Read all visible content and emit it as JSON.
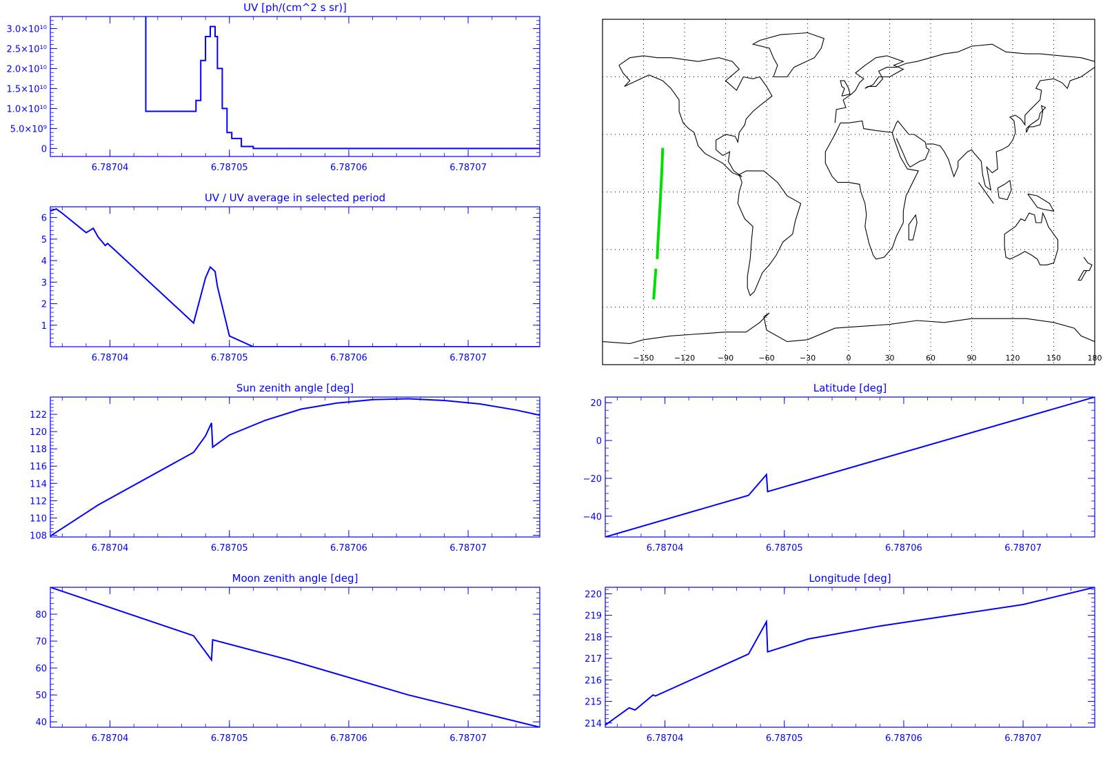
{
  "colors": {
    "axis": "#0000ff",
    "line": "#0000ff",
    "track": "#00e000",
    "map_frame": "#000000",
    "coast": "#000000",
    "grid": "#000000"
  },
  "chart_data": [
    {
      "id": "uv",
      "type": "line",
      "title": "UV [ph/(cm^2 s sr)]",
      "xlim": [
        6.787035,
        6.787076
      ],
      "ylim": [
        -2000000000.0,
        33000000000.0
      ],
      "x_ticks": [
        6.78704,
        6.78705,
        6.78706,
        6.78707
      ],
      "x_tick_labels": [
        "6.78704",
        "6.78705",
        "6.78706",
        "6.78707"
      ],
      "y_ticks": [
        0,
        5000000000.0,
        10000000000.0,
        15000000000.0,
        20000000000.0,
        25000000000.0,
        30000000000.0
      ],
      "y_tick_labels": [
        "0",
        "5.0×10⁹",
        "1.0×10¹⁰",
        "1.5×10¹⁰",
        "2.0×10¹⁰",
        "2.5×10¹⁰",
        "3.0×10¹⁰"
      ],
      "step": true,
      "x": [
        6.787043,
        6.787043,
        6.787047,
        6.7870472,
        6.7870476,
        6.787048,
        6.7870484,
        6.7870488,
        6.787049,
        6.7870494,
        6.7870498,
        6.7870502,
        6.787051,
        6.787052,
        6.787053,
        6.787076
      ],
      "y": [
        33000000000.0,
        9300000000.0,
        9300000000.0,
        12000000000.0,
        22000000000.0,
        28000000000.0,
        30500000000.0,
        28000000000.0,
        20000000000.0,
        10000000000.0,
        4000000000.0,
        2500000000.0,
        500000000.0,
        0,
        0,
        0
      ]
    },
    {
      "id": "uv_ratio",
      "type": "line",
      "title": "UV / UV average in selected period",
      "xlim": [
        6.787035,
        6.787076
      ],
      "ylim": [
        0,
        6.5
      ],
      "x_ticks": [
        6.78704,
        6.78705,
        6.78706,
        6.78707
      ],
      "x_tick_labels": [
        "6.78704",
        "6.78705",
        "6.78706",
        "6.78707"
      ],
      "y_ticks": [
        1,
        2,
        3,
        4,
        5,
        6
      ],
      "y_tick_labels": [
        "1",
        "2",
        "3",
        "4",
        "5",
        "6"
      ],
      "x": [
        6.787035,
        6.7870355,
        6.787036,
        6.787038,
        6.7870386,
        6.787039,
        6.7870396,
        6.7870398,
        6.787047,
        6.787048,
        6.7870484,
        6.7870488,
        6.787049,
        6.78705,
        6.787052,
        6.787076
      ],
      "y": [
        6.3,
        6.4,
        6.2,
        5.3,
        5.5,
        5.1,
        4.7,
        4.8,
        1.1,
        3.2,
        3.7,
        3.5,
        2.8,
        0.5,
        0,
        0
      ]
    },
    {
      "id": "sun_zenith",
      "type": "line",
      "title": "Sun zenith angle [deg]",
      "xlim": [
        6.787035,
        6.787076
      ],
      "ylim": [
        107.8,
        124.0
      ],
      "x_ticks": [
        6.78704,
        6.78705,
        6.78706,
        6.78707
      ],
      "x_tick_labels": [
        "6.78704",
        "6.78705",
        "6.78706",
        "6.78707"
      ],
      "y_ticks": [
        108,
        110,
        112,
        114,
        116,
        118,
        120,
        122
      ],
      "y_tick_labels": [
        "108",
        "110",
        "112",
        "114",
        "116",
        "118",
        "120",
        "122"
      ],
      "x": [
        6.787035,
        6.787039,
        6.787047,
        6.787048,
        6.7870485,
        6.7870486,
        6.78705,
        6.787053,
        6.787056,
        6.787059,
        6.787062,
        6.787065,
        6.787068,
        6.787071,
        6.787074,
        6.787076
      ],
      "y": [
        107.9,
        111.5,
        117.6,
        119.5,
        121.0,
        118.2,
        119.6,
        121.3,
        122.6,
        123.3,
        123.7,
        123.8,
        123.6,
        123.2,
        122.5,
        121.9
      ]
    },
    {
      "id": "latitude",
      "type": "line",
      "title": "Latitude [deg]",
      "xlim": [
        6.787035,
        6.787076
      ],
      "ylim": [
        -51,
        23
      ],
      "x_ticks": [
        6.78704,
        6.78705,
        6.78706,
        6.78707
      ],
      "x_tick_labels": [
        "6.78704",
        "6.78705",
        "6.78706",
        "6.78707"
      ],
      "y_ticks": [
        -40,
        -20,
        0,
        20
      ],
      "y_tick_labels": [
        "−40",
        "−20",
        "0",
        "20"
      ],
      "x": [
        6.787035,
        6.787047,
        6.7870485,
        6.7870486,
        6.787076
      ],
      "y": [
        -51,
        -29,
        -18,
        -27,
        23
      ]
    },
    {
      "id": "moon_zenith",
      "type": "line",
      "title": "Moon zenith angle [deg]",
      "xlim": [
        6.787035,
        6.787076
      ],
      "ylim": [
        38,
        90
      ],
      "x_ticks": [
        6.78704,
        6.78705,
        6.78706,
        6.78707
      ],
      "x_tick_labels": [
        "6.78704",
        "6.78705",
        "6.78706",
        "6.78707"
      ],
      "y_ticks": [
        40,
        50,
        60,
        70,
        80
      ],
      "y_tick_labels": [
        "40",
        "50",
        "60",
        "70",
        "80"
      ],
      "x": [
        6.787035,
        6.787047,
        6.7870485,
        6.7870486,
        6.787055,
        6.787065,
        6.787076
      ],
      "y": [
        90,
        72,
        63,
        70.5,
        63,
        50,
        38
      ]
    },
    {
      "id": "longitude",
      "type": "line",
      "title": "Longitude [deg]",
      "xlim": [
        6.787035,
        6.787076
      ],
      "ylim": [
        213.8,
        220.3
      ],
      "x_ticks": [
        6.78704,
        6.78705,
        6.78706,
        6.78707
      ],
      "x_tick_labels": [
        "6.78704",
        "6.78705",
        "6.78706",
        "6.78707"
      ],
      "y_ticks": [
        214,
        215,
        216,
        217,
        218,
        219,
        220
      ],
      "y_tick_labels": [
        "214",
        "215",
        "216",
        "217",
        "218",
        "219",
        "220"
      ],
      "x": [
        6.787035,
        6.787037,
        6.7870375,
        6.787039,
        6.7870392,
        6.787047,
        6.7870485,
        6.7870486,
        6.787052,
        6.787058,
        6.787064,
        6.78707,
        6.787076
      ],
      "y": [
        213.9,
        214.7,
        214.6,
        215.3,
        215.25,
        217.2,
        218.7,
        217.3,
        217.9,
        218.5,
        219.0,
        219.5,
        220.3
      ]
    },
    {
      "id": "map",
      "type": "scatter",
      "xlim": [
        -180,
        180
      ],
      "ylim": [
        -90,
        90
      ],
      "x_ticks": [
        -150,
        -120,
        -90,
        -60,
        -30,
        0,
        30,
        60,
        90,
        120,
        150,
        180
      ],
      "x_tick_labels": [
        "−150",
        "−120",
        "−90",
        "−60",
        "−30",
        "0",
        "30",
        "60",
        "90",
        "120",
        "150",
        "180"
      ],
      "grid": true,
      "track_segments": [
        {
          "x": [
            -136.0,
            -136.5,
            -137.2,
            -138.0,
            -138.8,
            -139.5,
            -140.0
          ],
          "y": [
            23,
            13,
            3,
            -8,
            -18,
            -27,
            -35
          ]
        },
        {
          "x": [
            -141.0,
            -141.6,
            -142.2,
            -142.6
          ],
          "y": [
            -40,
            -46,
            -52,
            -56
          ]
        }
      ]
    }
  ]
}
